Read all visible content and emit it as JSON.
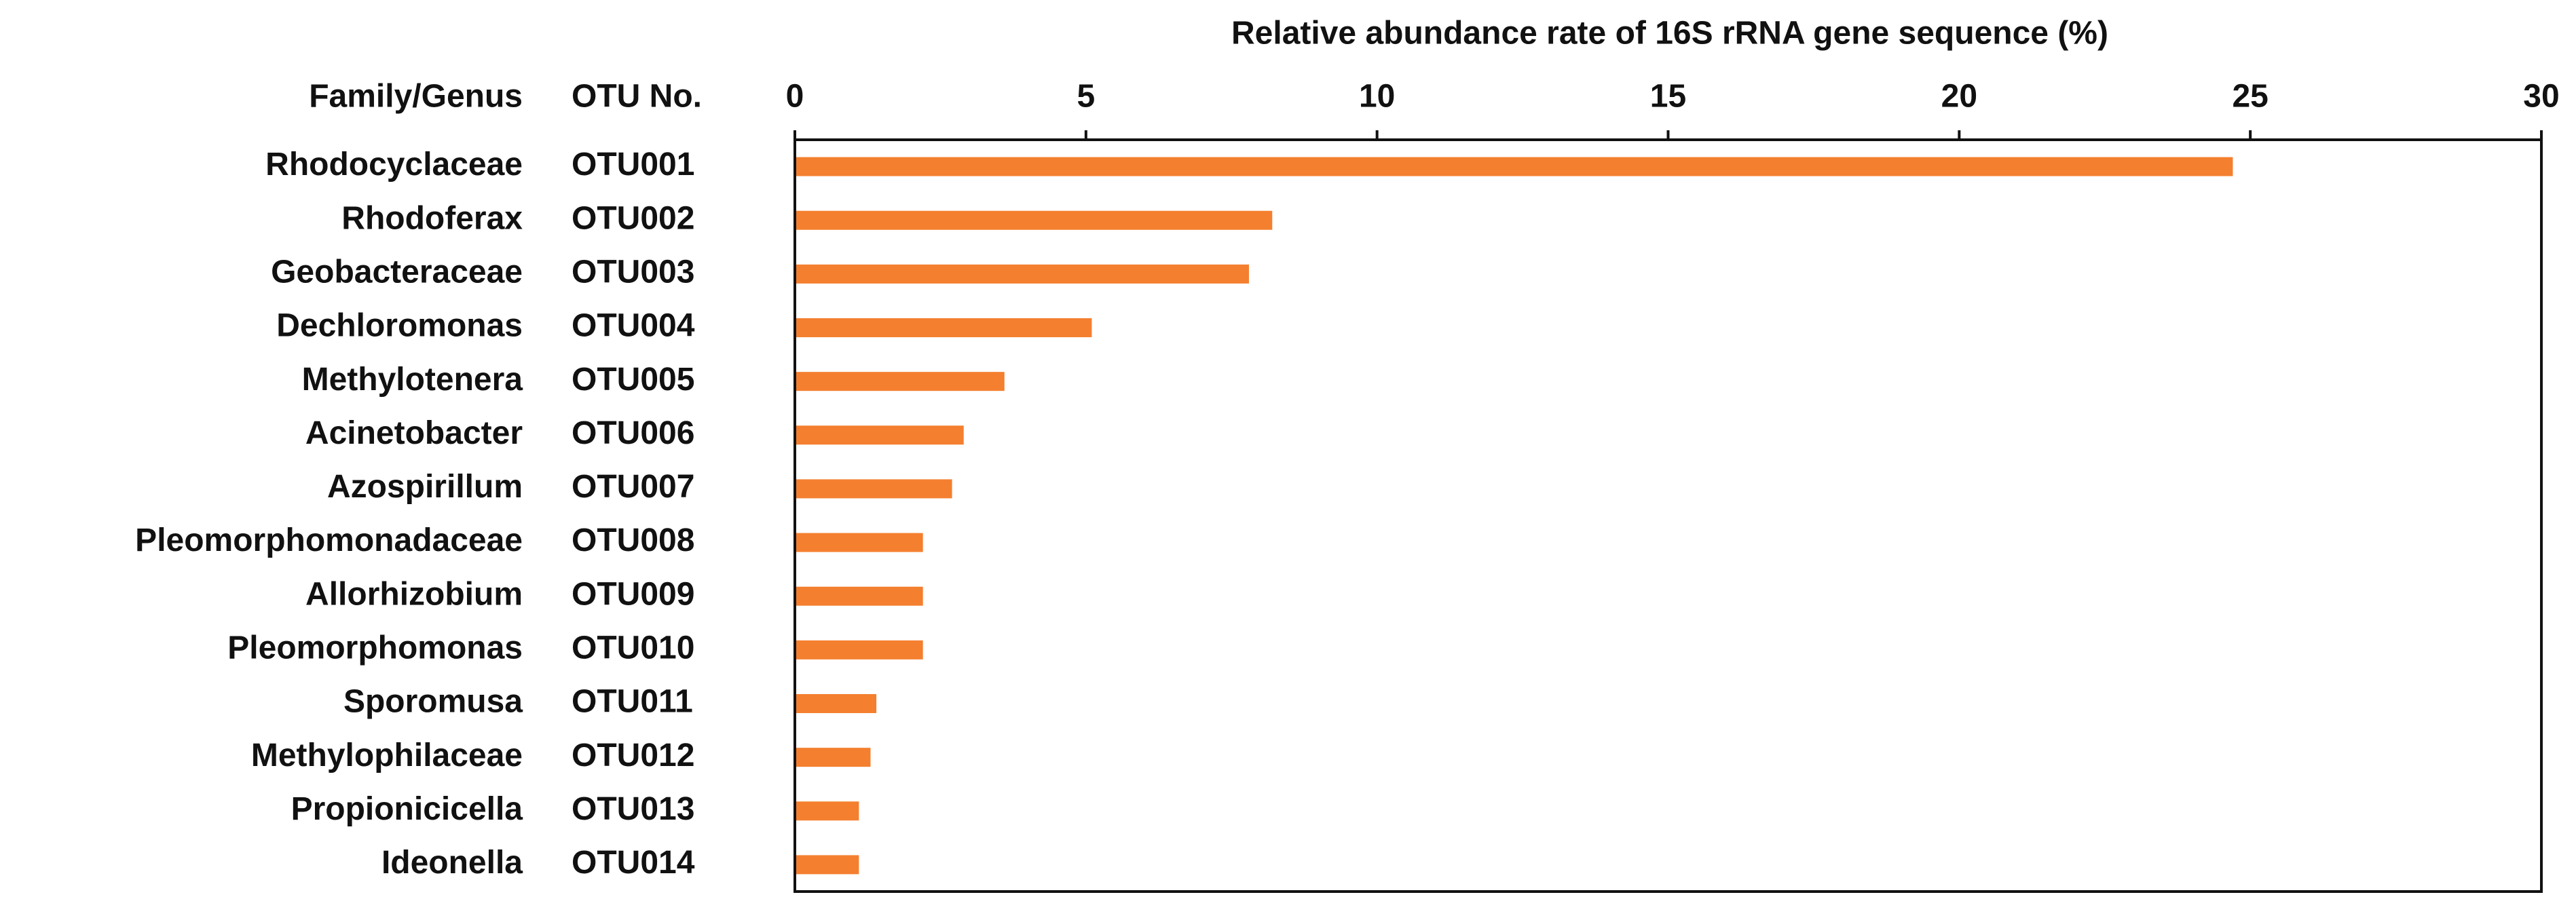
{
  "chart_data": {
    "type": "hbar",
    "xlabel": "Relative abundance rate of 16S rRNA gene sequence (%)",
    "column_headers": [
      "Family/Genus",
      "OTU No."
    ],
    "categories": [
      "Rhodocyclaceae",
      "Rhodoferax",
      "Geobacteraceae",
      "Dechloromonas",
      "Methylotenera",
      "Acinetobacter",
      "Azospirillum",
      "Pleomorphomonadaceae",
      "Allorhizobium",
      "Pleomorphomonas",
      "Sporomusa",
      "Methylophilaceae",
      "Propionicicella",
      "Ideonella"
    ],
    "otu_numbers": [
      "OTU001",
      "OTU002",
      "OTU003",
      "OTU004",
      "OTU005",
      "OTU006",
      "OTU007",
      "OTU008",
      "OTU009",
      "OTU010",
      "OTU011",
      "OTU012",
      "OTU013",
      "OTU014"
    ],
    "values": [
      24.7,
      8.2,
      7.8,
      5.1,
      3.6,
      2.9,
      2.7,
      2.2,
      2.2,
      2.2,
      1.4,
      1.3,
      1.1,
      1.1
    ],
    "color": "#f47f2f",
    "xlim": [
      0,
      30
    ],
    "xticks": [
      0,
      5,
      10,
      15,
      20,
      25,
      30
    ]
  }
}
